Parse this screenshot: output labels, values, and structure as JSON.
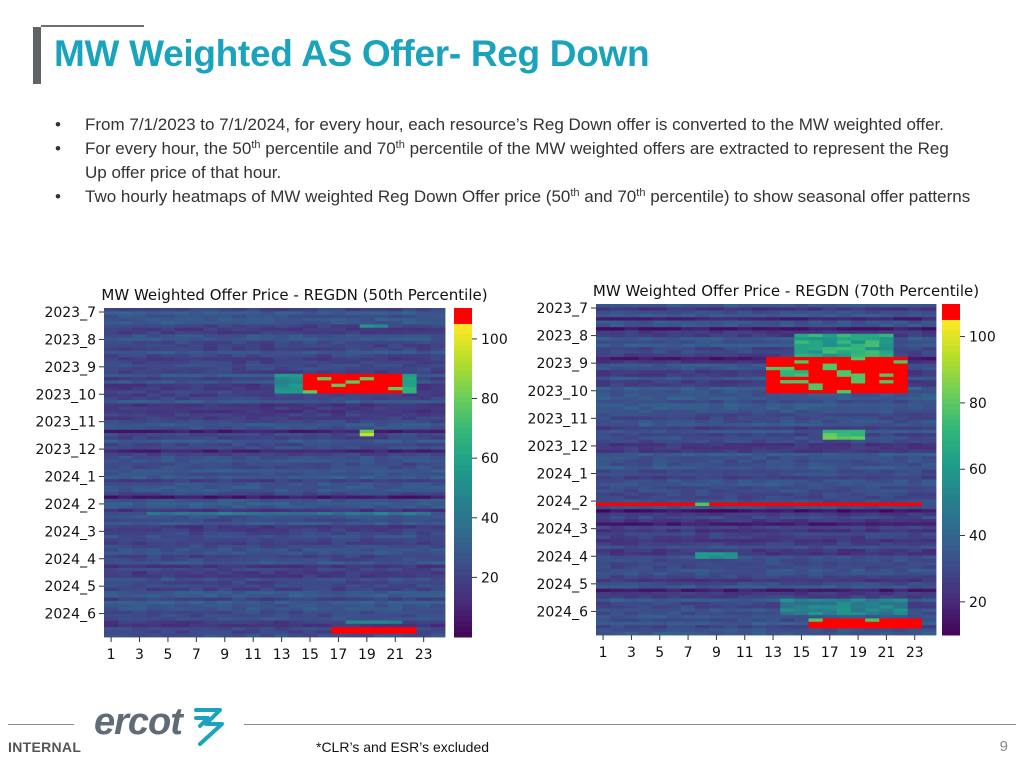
{
  "slide": {
    "title": "MW Weighted AS Offer- Reg Down",
    "bullets": [
      {
        "parts": [
          "From 7/1/2023 to 7/1/2024, for every hour, each resource’s Reg Down offer is converted to the MW weighted offer."
        ]
      },
      {
        "parts": [
          "For every hour, the 50",
          "th",
          " percentile and 70",
          "th",
          " percentile of the MW weighted offers are extracted to represent the Reg Up offer price of that hour."
        ]
      },
      {
        "parts": [
          "Two hourly heatmaps of MW weighted Reg Down Offer price (50",
          "th",
          " and 70",
          "th",
          " percentile) to show seasonal offer patterns"
        ]
      }
    ],
    "footer": {
      "label": "INTERNAL",
      "logo_text": "ercot",
      "note": "*CLR’s and ESR’s excluded",
      "page": "9"
    }
  },
  "chart_data": [
    {
      "type": "heatmap",
      "title": "MW Weighted Offer Price - REGDN (50th Percentile)",
      "x_ticks": [
        "1",
        "3",
        "5",
        "7",
        "9",
        "11",
        "13",
        "15",
        "17",
        "19",
        "21",
        "23"
      ],
      "y_ticks": [
        "2023_7",
        "2023_8",
        "2023_9",
        "2023_10",
        "2023_11",
        "2023_12",
        "2024_1",
        "2024_2",
        "2024_3",
        "2024_4",
        "2024_5",
        "2024_6"
      ],
      "colorbar_ticks": [
        "100",
        "80",
        "60",
        "40",
        "20"
      ],
      "colorbar_range": [
        0,
        105
      ],
      "colormap": "viridis",
      "over_color": "#ff0000",
      "hot_regions": [
        {
          "months": [
            2.3,
            3.1
          ],
          "hours": [
            15,
            21
          ],
          "value": 110
        },
        {
          "months": [
            2.3,
            3.1
          ],
          "hours": [
            13,
            14
          ],
          "value": 55
        },
        {
          "months": [
            2.4,
            3.0
          ],
          "hours": [
            22,
            22
          ],
          "value": 68
        },
        {
          "months": [
            7.4,
            7.5
          ],
          "hours": [
            4,
            23
          ],
          "value": 45
        },
        {
          "months": [
            11.6,
            11.8
          ],
          "hours": [
            17,
            22
          ],
          "value": 110
        },
        {
          "months": [
            11.3,
            11.5
          ],
          "hours": [
            18,
            21
          ],
          "value": 50
        },
        {
          "months": [
            4.4,
            4.6
          ],
          "hours": [
            19,
            19
          ],
          "value": 90
        },
        {
          "months": [
            0.5,
            0.7
          ],
          "hours": [
            19,
            20
          ],
          "value": 60
        }
      ]
    },
    {
      "type": "heatmap",
      "title": "MW Weighted Offer Price - REGDN (70th Percentile)",
      "x_ticks": [
        "1",
        "3",
        "5",
        "7",
        "9",
        "11",
        "13",
        "15",
        "17",
        "19",
        "21",
        "23"
      ],
      "y_ticks": [
        "2023_7",
        "2023_8",
        "2023_9",
        "2023_10",
        "2023_11",
        "2023_12",
        "2024_1",
        "2024_2",
        "2024_3",
        "2024_4",
        "2024_5",
        "2024_6"
      ],
      "colorbar_ticks": [
        "100",
        "80",
        "60",
        "40",
        "20"
      ],
      "colorbar_range": [
        10,
        105
      ],
      "colormap": "viridis",
      "over_color": "#ff0000",
      "hot_regions": [
        {
          "months": [
            1.0,
            1.8
          ],
          "hours": [
            15,
            21
          ],
          "value": 70
        },
        {
          "months": [
            1.8,
            3.2
          ],
          "hours": [
            13,
            22
          ],
          "value": 110
        },
        {
          "months": [
            2.3,
            2.6
          ],
          "hours": [
            14,
            15
          ],
          "value": 85
        },
        {
          "months": [
            7.1,
            7.3
          ],
          "hours": [
            1,
            23
          ],
          "value": 110
        },
        {
          "months": [
            11.3,
            11.7
          ],
          "hours": [
            16,
            23
          ],
          "value": 110
        },
        {
          "months": [
            10.6,
            11.2
          ],
          "hours": [
            14,
            22
          ],
          "value": 55
        },
        {
          "months": [
            4.5,
            4.9
          ],
          "hours": [
            17,
            19
          ],
          "value": 80
        },
        {
          "months": [
            9.0,
            9.2
          ],
          "hours": [
            8,
            10
          ],
          "value": 60
        }
      ]
    }
  ]
}
